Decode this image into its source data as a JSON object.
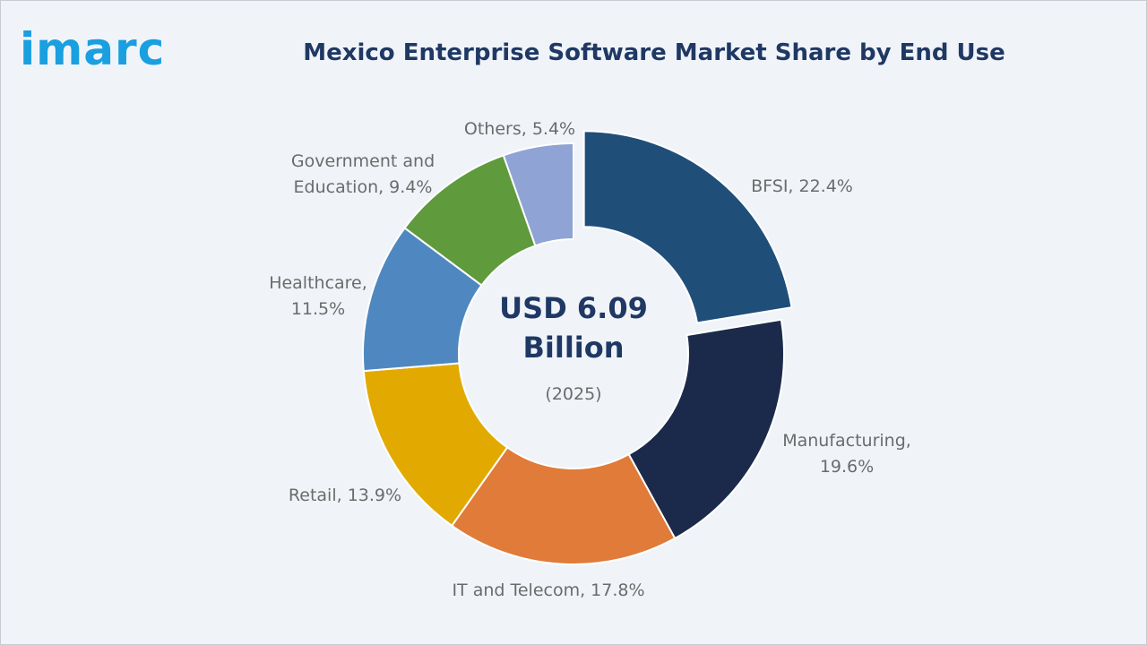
{
  "logo": "imarc",
  "chart_data": {
    "type": "pie",
    "title": "Mexico Enterprise Software Market Share by End Use",
    "center_label": "USD 6.09\nBillion",
    "center_sublabel": "(2025)",
    "values": [
      22.4,
      19.6,
      17.8,
      13.9,
      11.5,
      9.4,
      5.4
    ],
    "value_labels": [
      "BFSI, 22.4%",
      "Manufacturing,\n19.6%",
      "IT and Telecom, 17.8%",
      "Retail, 13.9%",
      "Healthcare,\n11.5%",
      "Government and\nEducation, 9.4%",
      "Others, 5.4%"
    ],
    "colors": [
      "#1f4e79",
      "#1b2a4a",
      "#e07b39",
      "#e2aa00",
      "#4f88c0",
      "#5f9a3c",
      "#8fa3d4"
    ]
  }
}
